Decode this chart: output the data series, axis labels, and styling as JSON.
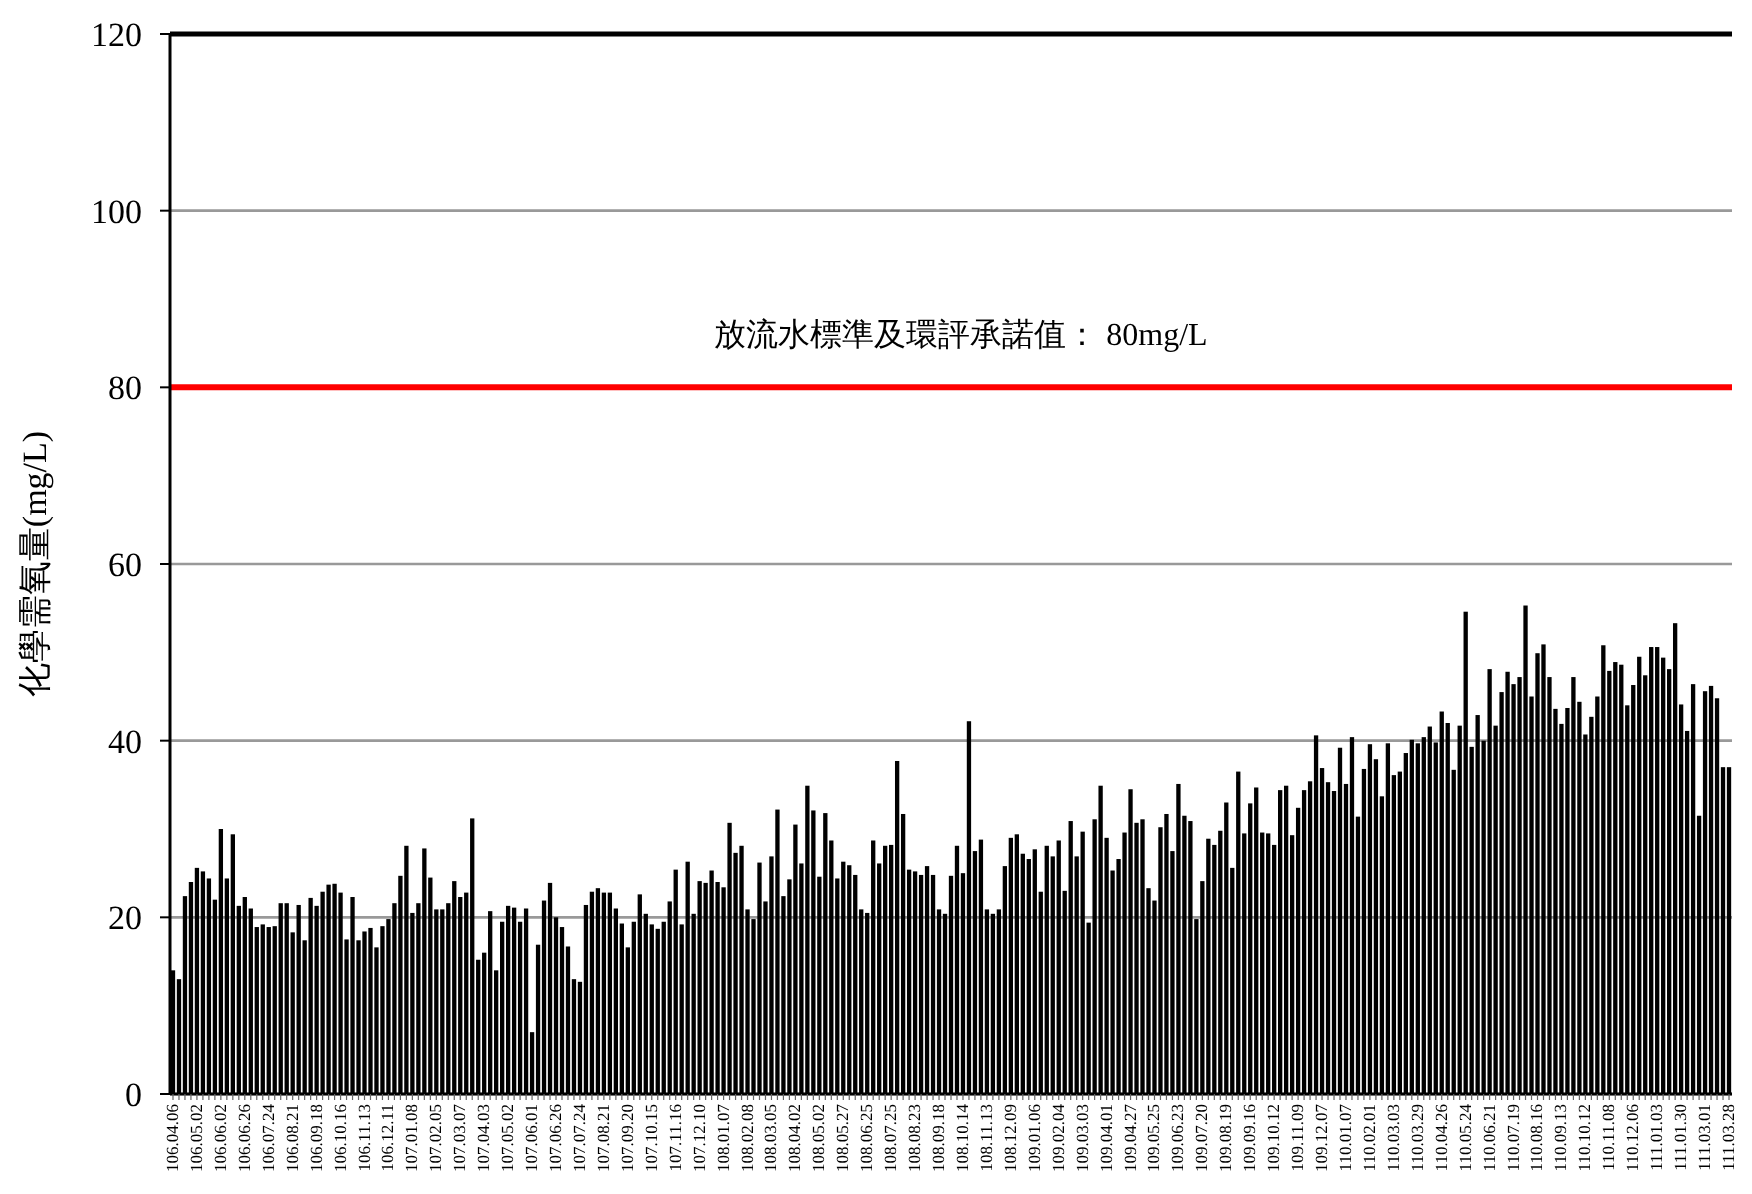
{
  "chart_data": {
    "type": "bar",
    "ylabel": "化學需氧量(mg/L)",
    "color": "#000000",
    "ylim": [
      0,
      120
    ],
    "yticks": [
      0,
      20,
      40,
      60,
      80,
      100,
      120
    ],
    "grid": "y",
    "ref_lines": [
      {
        "axis": "y",
        "value": 80,
        "label": "放流水標準及環評承諾值： 80mg/L",
        "color": "#ff0000"
      }
    ],
    "categories": [
      "106.04.06",
      null,
      null,
      null,
      "106.05.02",
      null,
      null,
      null,
      "106.06.02",
      null,
      null,
      null,
      "106.06.26",
      null,
      null,
      null,
      "106.07.24",
      null,
      null,
      null,
      "106.08.21",
      null,
      null,
      null,
      "106.09.18",
      null,
      null,
      null,
      "106.10.16",
      null,
      null,
      null,
      "106.11.13",
      null,
      null,
      null,
      "106.12.11",
      null,
      null,
      null,
      "107.01.08",
      null,
      null,
      null,
      "107.02.05",
      null,
      null,
      null,
      "107.03.07",
      null,
      null,
      null,
      "107.04.03",
      null,
      null,
      null,
      "107.05.02",
      null,
      null,
      null,
      "107.06.01",
      null,
      null,
      null,
      "107.06.26",
      null,
      null,
      null,
      "107.07.24",
      null,
      null,
      null,
      "107.08.21",
      null,
      null,
      null,
      "107.09.20",
      null,
      null,
      null,
      "107.10.15",
      null,
      null,
      null,
      "107.11.16",
      null,
      null,
      null,
      "107.12.10",
      null,
      null,
      null,
      "108.01.07",
      null,
      null,
      null,
      "108.02.08",
      null,
      null,
      null,
      "108.03.05",
      null,
      null,
      null,
      "108.04.02",
      null,
      null,
      null,
      "108.05.02",
      null,
      null,
      null,
      "108.05.27",
      null,
      null,
      null,
      "108.06.25",
      null,
      null,
      null,
      "108.07.25",
      null,
      null,
      null,
      "108.08.23",
      null,
      null,
      null,
      "108.09.18",
      null,
      null,
      null,
      "108.10.14",
      null,
      null,
      null,
      "108.11.13",
      null,
      null,
      null,
      "108.12.09",
      null,
      null,
      null,
      "109.01.06",
      null,
      null,
      null,
      "109.02.04",
      null,
      null,
      null,
      "109.03.03",
      null,
      null,
      null,
      "109.04.01",
      null,
      null,
      null,
      "109.04.27",
      null,
      null,
      null,
      "109.05.25",
      null,
      null,
      null,
      "109.06.23",
      null,
      null,
      null,
      "109.07.20",
      null,
      null,
      null,
      "109.08.19",
      null,
      null,
      null,
      "109.09.16",
      null,
      null,
      null,
      "109.10.12",
      null,
      null,
      null,
      "109.11.09",
      null,
      null,
      null,
      "109.12.07",
      null,
      null,
      null,
      "110.01.07",
      null,
      null,
      null,
      "110.02.01",
      null,
      null,
      null,
      "110.03.03",
      null,
      null,
      null,
      "110.03.29",
      null,
      null,
      null,
      "110.04.26",
      null,
      null,
      null,
      "110.05.24",
      null,
      null,
      null,
      "110.06.21",
      null,
      null,
      null,
      "110.07.19",
      null,
      null,
      null,
      "110.08.16",
      null,
      null,
      null,
      "110.09.13",
      null,
      null,
      null,
      "110.10.12",
      null,
      null,
      null,
      "110.11.08",
      null,
      null,
      null,
      "110.12.06",
      null,
      null,
      null,
      "111.01.03",
      null,
      null,
      null,
      "111.01.30",
      null,
      null,
      null,
      "111.03.01",
      null,
      null,
      null,
      "111.03.28"
    ],
    "values": [
      14,
      13,
      22.4,
      24,
      25.6,
      25.2,
      24.4,
      22,
      30,
      24.4,
      29.4,
      21.3,
      22.3,
      21,
      18.9,
      19.2,
      18.9,
      19,
      21.6,
      21.6,
      18.3,
      21.4,
      17.4,
      22.2,
      21.3,
      22.9,
      23.7,
      23.8,
      22.8,
      17.5,
      22.3,
      17.4,
      18.4,
      18.8,
      16.6,
      19,
      19.8,
      21.6,
      24.7,
      28.1,
      20.5,
      21.6,
      27.8,
      24.5,
      20.9,
      20.9,
      21.6,
      24.1,
      22.3,
      22.8,
      31.2,
      15.2,
      16,
      20.7,
      14,
      19.5,
      21.3,
      21.1,
      19.5,
      21,
      7,
      16.9,
      21.9,
      23.9,
      20,
      18.9,
      16.7,
      13,
      12.7,
      21.4,
      22.9,
      23.3,
      22.8,
      22.8,
      21,
      19.3,
      16.6,
      19.5,
      22.6,
      20.4,
      19.2,
      18.7,
      19.5,
      21.8,
      25.4,
      19.2,
      26.3,
      20.4,
      24.1,
      23.9,
      25.3,
      24,
      23.4,
      30.7,
      27.3,
      28.1,
      20.9,
      19.8,
      26.2,
      21.8,
      26.9,
      32.2,
      22.4,
      24.3,
      30.5,
      26.1,
      34.9,
      32.1,
      24.6,
      31.8,
      28.7,
      24.4,
      26.3,
      25.9,
      24.8,
      20.9,
      20.5,
      28.7,
      26.1,
      28.1,
      28.2,
      37.7,
      31.7,
      25.4,
      25.2,
      24.8,
      25.8,
      24.8,
      20.9,
      20.4,
      24.7,
      28.1,
      25,
      42.2,
      27.5,
      28.8,
      20.9,
      20.4,
      20.9,
      25.8,
      29,
      29.4,
      27.2,
      26.6,
      27.7,
      22.9,
      28.1,
      26.9,
      28.7,
      23,
      30.9,
      26.9,
      29.7,
      19.4,
      31.1,
      34.9,
      29,
      25.3,
      26.6,
      29.6,
      34.5,
      30.7,
      31.1,
      23.3,
      21.9,
      30.2,
      31.7,
      27.5,
      35.1,
      31.5,
      30.9,
      19.8,
      24.1,
      28.9,
      28.2,
      29.8,
      33,
      25.6,
      36.5,
      29.5,
      32.9,
      34.7,
      29.6,
      29.5,
      28.2,
      34.4,
      34.9,
      29.3,
      32.4,
      34.4,
      35.4,
      40.6,
      36.9,
      35.3,
      34.3,
      39.2,
      35.1,
      40.4,
      31.4,
      36.8,
      39.6,
      37.9,
      33.7,
      39.7,
      36.1,
      36.5,
      38.6,
      40.1,
      39.7,
      40.4,
      41.6,
      39.8,
      43.3,
      42,
      36.7,
      41.7,
      54.6,
      39.3,
      42.9,
      40,
      48.1,
      41.7,
      45.5,
      47.8,
      46.4,
      47.2,
      55.3,
      45,
      49.9,
      50.9,
      47.2,
      43.6,
      41.9,
      43.7,
      47.2,
      44.4,
      40.7,
      42.7,
      45,
      50.8,
      47.9,
      48.9,
      48.6,
      44,
      46.3,
      49.5,
      47.4,
      50.6,
      50.6,
      49.4,
      48.1,
      53.3,
      44.1,
      41.1,
      46.4,
      31.5,
      45.6,
      46.2,
      44.8,
      37,
      37
    ]
  }
}
